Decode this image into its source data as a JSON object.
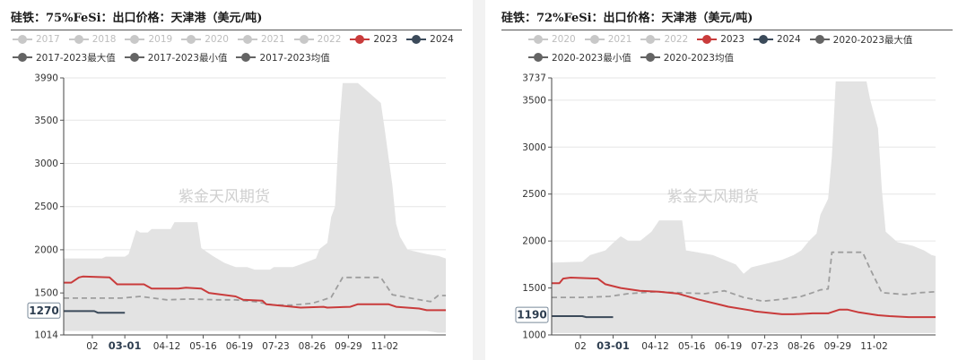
{
  "watermark": "紫金天风期货",
  "colors": {
    "band": "#e3e3e3",
    "avg": "#9e9e9e",
    "y2023": "#c93b3b",
    "y2024": "#3b4a5a",
    "faded": "#c8c8c8",
    "darkgray": "#646464"
  },
  "chart_data": [
    {
      "type": "line",
      "title": "硅铁：75%FeSi：出口价格：天津港（美元/吨)",
      "legend": {
        "rows": [
          [
            {
              "label": "2017",
              "style": "faded"
            },
            {
              "label": "2018",
              "style": "faded"
            },
            {
              "label": "2019",
              "style": "faded"
            },
            {
              "label": "2020",
              "style": "faded"
            },
            {
              "label": "2021",
              "style": "faded"
            },
            {
              "label": "2022",
              "style": "faded"
            },
            {
              "label": "2023",
              "style": "y2023"
            },
            {
              "label": "2024",
              "style": "y2024"
            }
          ],
          [
            {
              "label": "2017-2023最大值",
              "style": "darkgray"
            },
            {
              "label": "2017-2023最小值",
              "style": "darkgray"
            },
            {
              "label": "2017-2023均值",
              "style": "darkgray"
            }
          ]
        ]
      },
      "y_ticks": [
        "3990",
        "3500",
        "3000",
        "2500",
        "2000",
        "1500",
        "1014"
      ],
      "ylim": [
        1014,
        3990
      ],
      "x_ticks": [
        "02",
        "03-01",
        "04-12",
        "05-16",
        "06-19",
        "07-23",
        "08-26",
        "09-29",
        "11-02"
      ],
      "x_tick_pos": [
        0.075,
        0.16,
        0.27,
        0.365,
        0.46,
        0.555,
        0.65,
        0.745,
        0.84
      ],
      "highlight_tick": "03-01",
      "value_label": "1270",
      "band": {
        "x": [
          0,
          0.1,
          0.11,
          0.16,
          0.17,
          0.19,
          0.2,
          0.22,
          0.23,
          0.28,
          0.29,
          0.35,
          0.36,
          0.39,
          0.42,
          0.45,
          0.48,
          0.5,
          0.54,
          0.55,
          0.6,
          0.62,
          0.66,
          0.67,
          0.69,
          0.7,
          0.71,
          0.72,
          0.73,
          0.74,
          0.75,
          0.76,
          0.77,
          0.83,
          0.84,
          0.86,
          0.87,
          0.88,
          0.9,
          0.95,
          0.98,
          1.0
        ],
        "max": [
          1900,
          1900,
          1920,
          1920,
          1950,
          2230,
          2200,
          2200,
          2240,
          2240,
          2320,
          2320,
          2020,
          1930,
          1850,
          1800,
          1800,
          1770,
          1770,
          1800,
          1800,
          1830,
          1900,
          2010,
          2080,
          2380,
          2500,
          3350,
          3930,
          3930,
          3930,
          3930,
          3930,
          3700,
          3400,
          2750,
          2300,
          2150,
          2000,
          1950,
          1930,
          1900
        ],
        "min": [
          1060,
          1060,
          1060,
          1060,
          1060,
          1060,
          1060,
          1060,
          1060,
          1060,
          1060,
          1060,
          1060,
          1060,
          1060,
          1060,
          1060,
          1060,
          1060,
          1060,
          1060,
          1060,
          1060,
          1060,
          1060,
          1060,
          1060,
          1060,
          1060,
          1060,
          1060,
          1060,
          1060,
          1060,
          1060,
          1060,
          1060,
          1060,
          1060,
          1060,
          1040,
          1040
        ]
      },
      "series": [
        {
          "name": "2017-2023均值",
          "style": "avg",
          "x": [
            0,
            0.08,
            0.15,
            0.2,
            0.27,
            0.33,
            0.4,
            0.45,
            0.5,
            0.55,
            0.6,
            0.65,
            0.68,
            0.7,
            0.73,
            0.75,
            0.79,
            0.83,
            0.86,
            0.92,
            0.96,
            0.98,
            1.0
          ],
          "values": [
            1440,
            1440,
            1440,
            1460,
            1420,
            1430,
            1420,
            1420,
            1400,
            1360,
            1360,
            1380,
            1420,
            1450,
            1680,
            1680,
            1680,
            1680,
            1480,
            1430,
            1400,
            1470,
            1470
          ]
        },
        {
          "name": "2023",
          "style": "y2023",
          "x": [
            0,
            0.02,
            0.04,
            0.05,
            0.12,
            0.14,
            0.21,
            0.23,
            0.3,
            0.32,
            0.36,
            0.38,
            0.45,
            0.47,
            0.52,
            0.53,
            0.6,
            0.62,
            0.68,
            0.69,
            0.75,
            0.77,
            0.85,
            0.87,
            0.93,
            0.95,
            1.0
          ],
          "values": [
            1620,
            1620,
            1680,
            1690,
            1680,
            1600,
            1600,
            1550,
            1550,
            1560,
            1550,
            1500,
            1460,
            1420,
            1410,
            1370,
            1340,
            1330,
            1340,
            1330,
            1340,
            1370,
            1370,
            1340,
            1320,
            1300,
            1300
          ]
        },
        {
          "name": "2024",
          "style": "y2024",
          "x": [
            0,
            0.08,
            0.09,
            0.16
          ],
          "values": [
            1290,
            1290,
            1270,
            1270
          ]
        }
      ]
    },
    {
      "type": "line",
      "title": "硅铁：72%FeSi：出口价格：天津港（美元/吨)",
      "legend": {
        "rows": [
          [
            {
              "label": "2020",
              "style": "faded"
            },
            {
              "label": "2021",
              "style": "faded"
            },
            {
              "label": "2022",
              "style": "faded"
            },
            {
              "label": "2023",
              "style": "y2023"
            },
            {
              "label": "2024",
              "style": "y2024"
            },
            {
              "label": "2020-2023最大值",
              "style": "darkgray"
            }
          ],
          [
            {
              "label": "2020-2023最小值",
              "style": "darkgray"
            },
            {
              "label": "2020-2023均值",
              "style": "darkgray"
            }
          ]
        ]
      },
      "y_ticks": [
        "3737",
        "3500",
        "3000",
        "2500",
        "2000",
        "1500",
        "1000"
      ],
      "ylim": [
        1000,
        3737
      ],
      "x_ticks": [
        "02",
        "03-01",
        "04-12",
        "05-16",
        "06-19",
        "07-23",
        "08-26",
        "09-29",
        "11-02"
      ],
      "x_tick_pos": [
        0.075,
        0.16,
        0.27,
        0.365,
        0.46,
        0.555,
        0.65,
        0.745,
        0.84
      ],
      "highlight_tick": "03-01",
      "value_label": "1190",
      "band": {
        "x": [
          0,
          0.08,
          0.1,
          0.14,
          0.16,
          0.18,
          0.2,
          0.23,
          0.26,
          0.28,
          0.34,
          0.35,
          0.38,
          0.42,
          0.45,
          0.48,
          0.5,
          0.52,
          0.55,
          0.6,
          0.63,
          0.65,
          0.67,
          0.69,
          0.7,
          0.72,
          0.73,
          0.74,
          0.75,
          0.76,
          0.77,
          0.82,
          0.83,
          0.85,
          0.86,
          0.87,
          0.9,
          0.94,
          0.97,
          0.99,
          1.0
        ],
        "max": [
          1770,
          1780,
          1850,
          1900,
          1980,
          2050,
          2000,
          2000,
          2100,
          2220,
          2220,
          1900,
          1880,
          1850,
          1800,
          1750,
          1650,
          1720,
          1750,
          1800,
          1850,
          1900,
          2000,
          2080,
          2280,
          2450,
          2900,
          3700,
          3700,
          3700,
          3700,
          3700,
          3500,
          3200,
          2550,
          2100,
          1990,
          1950,
          1900,
          1850,
          1840
        ],
        "min": [
          1020,
          1020,
          1020,
          1020,
          1020,
          1020,
          1020,
          1020,
          1020,
          1020,
          1020,
          1020,
          1020,
          1020,
          1020,
          1020,
          1020,
          1020,
          1020,
          1020,
          1020,
          1020,
          1020,
          1020,
          1020,
          1020,
          1020,
          1020,
          1020,
          1020,
          1020,
          1020,
          1020,
          1020,
          1020,
          1020,
          1020,
          1020,
          1020,
          1020,
          1020
        ]
      },
      "series": [
        {
          "name": "2020-2023均值",
          "style": "avg",
          "x": [
            0,
            0.08,
            0.15,
            0.2,
            0.27,
            0.33,
            0.4,
            0.45,
            0.5,
            0.55,
            0.6,
            0.65,
            0.68,
            0.7,
            0.72,
            0.73,
            0.75,
            0.79,
            0.81,
            0.83,
            0.86,
            0.92,
            0.96,
            1.0
          ],
          "values": [
            1400,
            1400,
            1410,
            1440,
            1460,
            1450,
            1440,
            1470,
            1400,
            1360,
            1380,
            1410,
            1450,
            1480,
            1490,
            1880,
            1880,
            1880,
            1880,
            1700,
            1450,
            1430,
            1450,
            1460
          ]
        },
        {
          "name": "2023",
          "style": "y2023",
          "x": [
            0,
            0.02,
            0.03,
            0.05,
            0.12,
            0.14,
            0.18,
            0.23,
            0.28,
            0.33,
            0.38,
            0.44,
            0.46,
            0.52,
            0.53,
            0.6,
            0.63,
            0.68,
            0.72,
            0.75,
            0.77,
            0.8,
            0.85,
            0.88,
            0.93,
            1.0
          ],
          "values": [
            1550,
            1550,
            1600,
            1610,
            1600,
            1540,
            1500,
            1470,
            1460,
            1440,
            1380,
            1320,
            1300,
            1260,
            1250,
            1220,
            1220,
            1230,
            1230,
            1270,
            1270,
            1240,
            1210,
            1200,
            1190,
            1190
          ]
        },
        {
          "name": "2024",
          "style": "y2024",
          "x": [
            0,
            0.08,
            0.09,
            0.16
          ],
          "values": [
            1200,
            1200,
            1190,
            1190
          ]
        }
      ]
    }
  ]
}
